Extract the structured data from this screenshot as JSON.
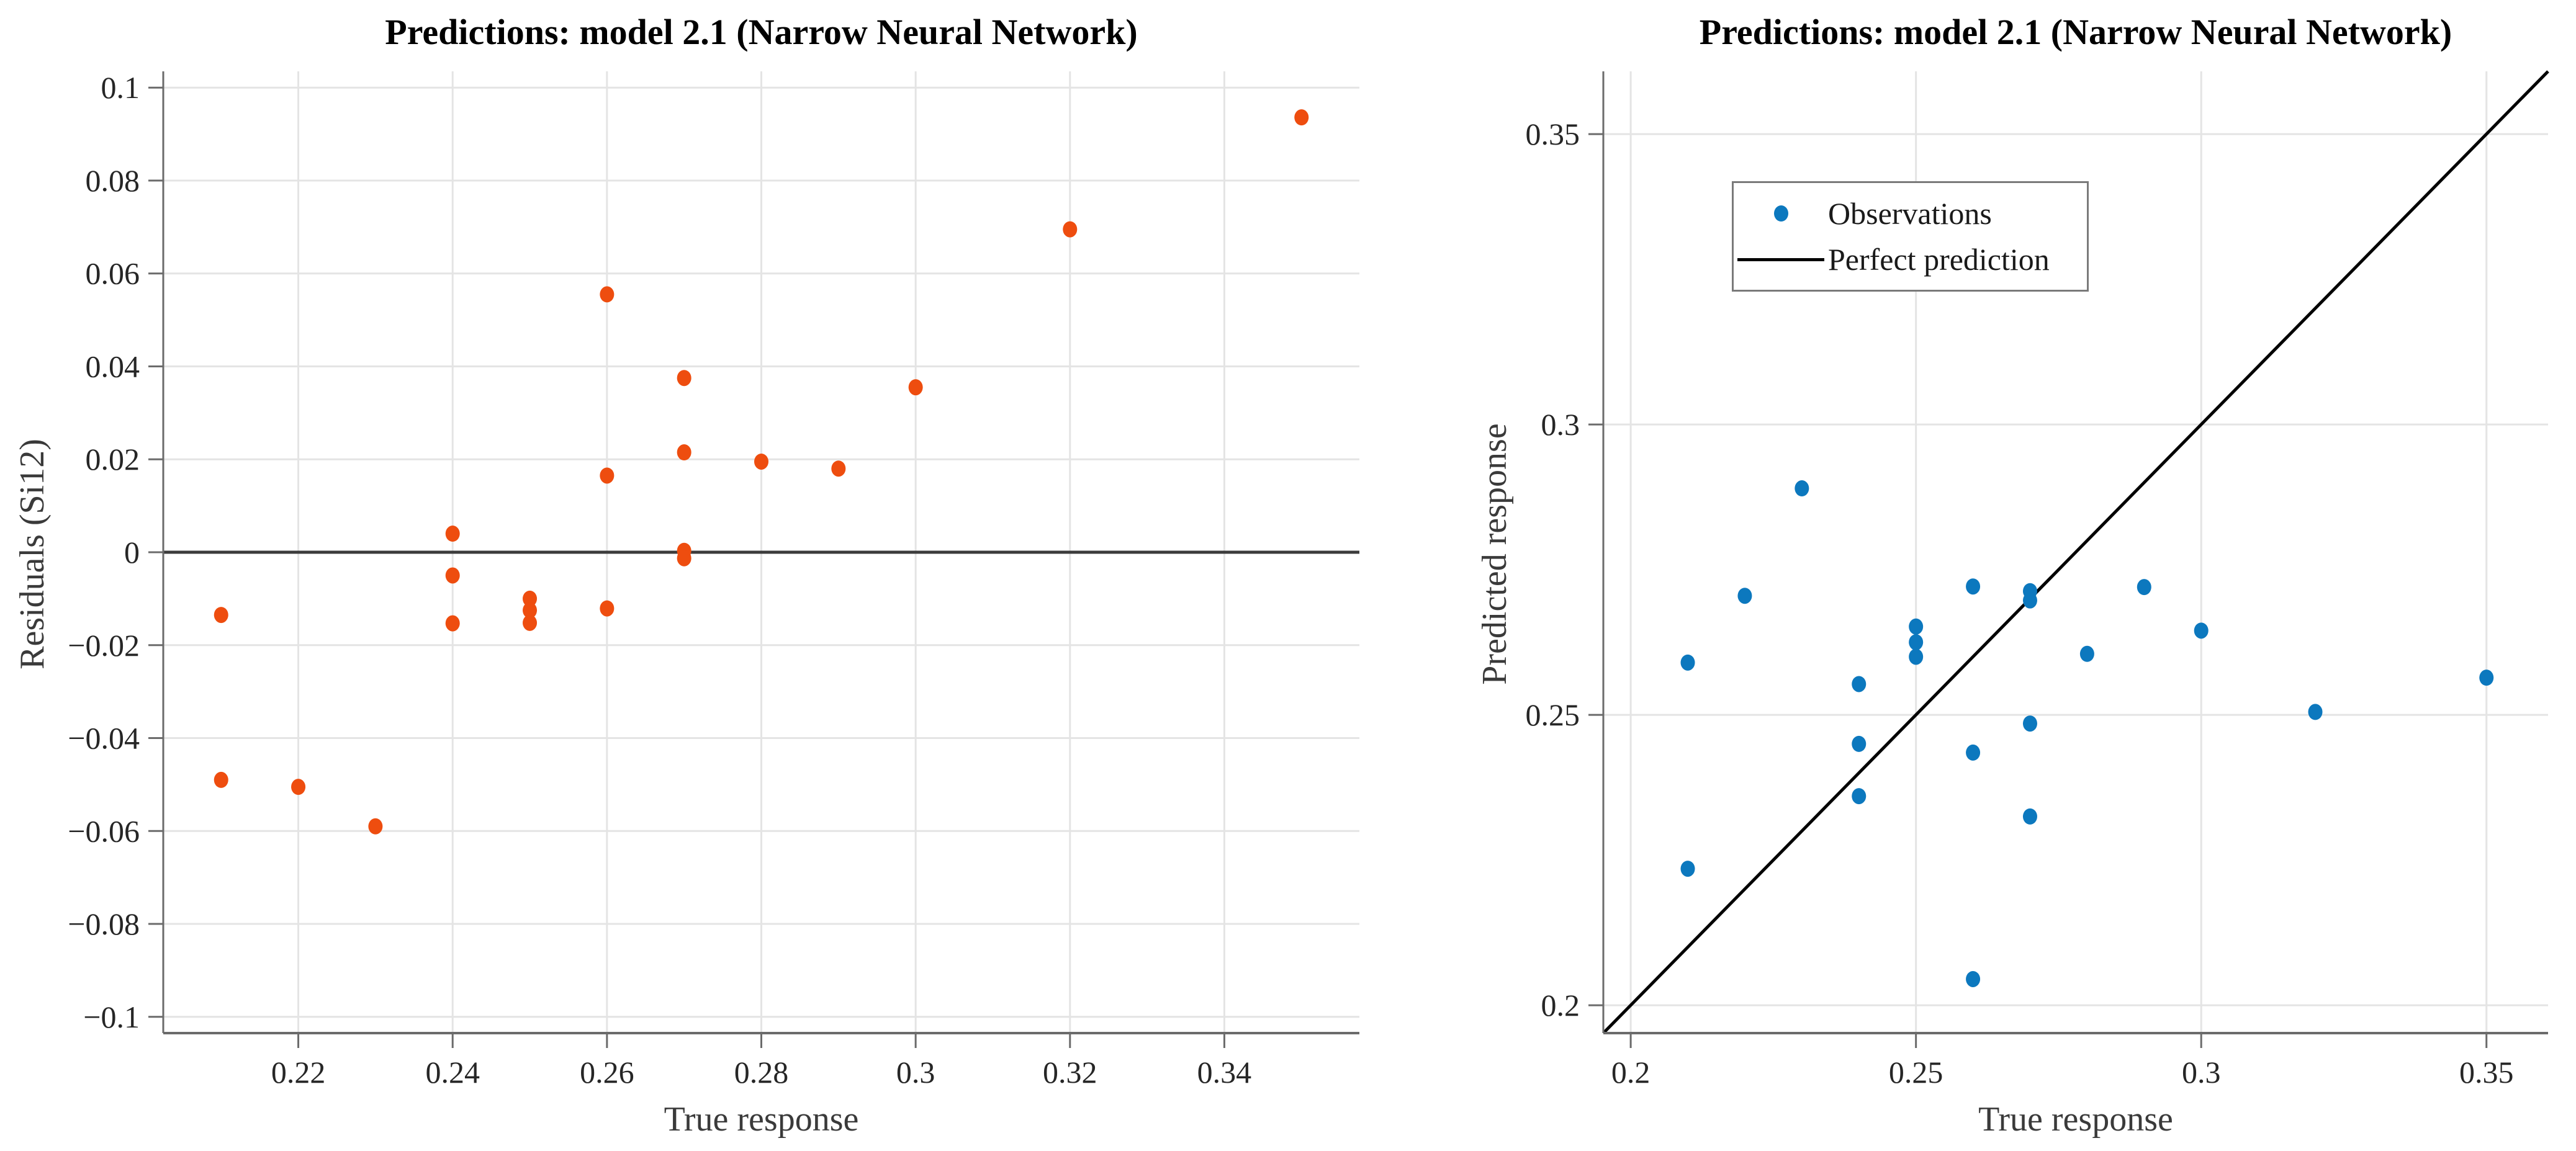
{
  "figure": {
    "background": "#ffffff"
  },
  "style": {
    "grid_color": "#e4e4e4",
    "axis_color": "#6b6b6b",
    "tick_label_color": "#262626",
    "axis_label_color": "#3a3a3a",
    "title_color": "#000000",
    "orange": "#ee4d0f",
    "blue": "#0c78be",
    "zero_line_color": "#3c3c3c",
    "perfect_line_color": "#000000",
    "legend_border_color": "#7a7a7a"
  },
  "chart_data": [
    {
      "type": "scatter",
      "panel": "left",
      "title": "Predictions: model 2.1 (Narrow Neural Network)",
      "xlabel": "True response",
      "ylabel": "Residuals (Si12)",
      "xlim": [
        0.2025,
        0.3575
      ],
      "ylim": [
        -0.1035,
        0.1035
      ],
      "grid": true,
      "xticks": {
        "values": [
          0.22,
          0.24,
          0.26,
          0.28,
          0.3,
          0.32,
          0.34
        ],
        "labels": [
          "0.22",
          "0.24",
          "0.26",
          "0.28",
          "0.3",
          "0.32",
          "0.34"
        ]
      },
      "yticks": {
        "values": [
          0.1,
          0.08,
          0.06,
          0.04,
          0.02,
          0,
          -0.02,
          -0.04,
          -0.06,
          -0.08,
          -0.1
        ],
        "labels": [
          "0.1",
          "0.08",
          "0.06",
          "0.04",
          "0.02",
          "0",
          "−0.02",
          "−0.04",
          "−0.06",
          "−0.08",
          "−0.1"
        ]
      },
      "series": [
        {
          "name": "Residuals",
          "marker": "dot",
          "marker_color": "#ee4d0f",
          "points": [
            [
              0.21,
              -0.0135
            ],
            [
              0.21,
              -0.049
            ],
            [
              0.22,
              -0.0505
            ],
            [
              0.23,
              -0.059
            ],
            [
              0.24,
              0.004
            ],
            [
              0.24,
              -0.005
            ],
            [
              0.24,
              -0.0153
            ],
            [
              0.25,
              -0.01
            ],
            [
              0.25,
              -0.0125
            ],
            [
              0.25,
              -0.0152
            ],
            [
              0.26,
              0.0555
            ],
            [
              0.26,
              0.0165
            ],
            [
              0.26,
              -0.0121
            ],
            [
              0.27,
              0.0375
            ],
            [
              0.27,
              0.0215
            ],
            [
              0.27,
              0.0003
            ],
            [
              0.27,
              -0.0013
            ],
            [
              0.28,
              0.0195
            ],
            [
              0.29,
              0.018
            ],
            [
              0.3,
              0.0355
            ],
            [
              0.32,
              0.0695
            ],
            [
              0.35,
              0.0936
            ]
          ]
        }
      ],
      "ref_lines": [
        {
          "name": "zero-residual-line",
          "color": "#3c3c3c",
          "width": 5,
          "from": [
            0.2025,
            0
          ],
          "to": [
            0.3575,
            0
          ]
        }
      ]
    },
    {
      "type": "scatter",
      "panel": "right",
      "title": "Predictions: model 2.1 (Narrow Neural Network)",
      "xlabel": "True response",
      "ylabel": "Predicted response",
      "xlim": [
        0.1952,
        0.3608
      ],
      "ylim": [
        0.1952,
        0.3608
      ],
      "grid": true,
      "xticks": {
        "values": [
          0.2,
          0.25,
          0.3,
          0.35
        ],
        "labels": [
          "0.2",
          "0.25",
          "0.3",
          "0.35"
        ]
      },
      "yticks": {
        "values": [
          0.2,
          0.25,
          0.3,
          0.35
        ],
        "labels": [
          "0.2",
          "0.25",
          "0.3",
          "0.35"
        ]
      },
      "series": [
        {
          "name": "Observations",
          "marker": "dot",
          "marker_color": "#0c78be",
          "points": [
            [
              0.21,
              0.2235
            ],
            [
              0.21,
              0.259
            ],
            [
              0.22,
              0.2705
            ],
            [
              0.23,
              0.289
            ],
            [
              0.24,
              0.236
            ],
            [
              0.24,
              0.245
            ],
            [
              0.24,
              0.2553
            ],
            [
              0.25,
              0.26
            ],
            [
              0.25,
              0.2625
            ],
            [
              0.25,
              0.2652
            ],
            [
              0.26,
              0.2045
            ],
            [
              0.26,
              0.2435
            ],
            [
              0.26,
              0.2721
            ],
            [
              0.27,
              0.2325
            ],
            [
              0.27,
              0.2485
            ],
            [
              0.27,
              0.2697
            ],
            [
              0.27,
              0.2713
            ],
            [
              0.28,
              0.2605
            ],
            [
              0.29,
              0.272
            ],
            [
              0.3,
              0.2645
            ],
            [
              0.32,
              0.2505
            ],
            [
              0.35,
              0.2564
            ]
          ]
        }
      ],
      "ref_lines": [
        {
          "name": "perfect-prediction-line",
          "color": "#000000",
          "width": 5,
          "from": [
            0.1952,
            0.1952
          ],
          "to": [
            0.3608,
            0.3608
          ]
        }
      ],
      "legend": {
        "entries": [
          {
            "label": "Observations",
            "marker": "dot",
            "color": "#0c78be"
          },
          {
            "label": "Perfect prediction",
            "marker": "line",
            "color": "#000000"
          }
        ]
      }
    }
  ]
}
